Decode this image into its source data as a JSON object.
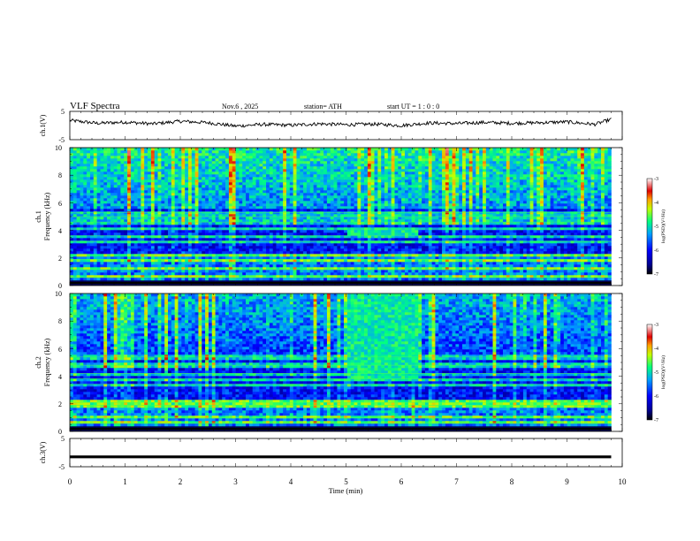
{
  "header": {
    "title": "VLF  Spectra",
    "date": "Nov.6  , 2025",
    "station": "station= ATH",
    "start_ut": "start  UT  =   1  : 0   : 0"
  },
  "chart_data": [
    {
      "type": "line",
      "name": "ch1_waveform",
      "ylabel": "ch.1(V)",
      "ylim": [
        -5,
        5
      ],
      "yticks": [
        "5",
        "-5"
      ],
      "x": [
        0,
        0.5,
        1,
        1.5,
        2,
        2.5,
        3,
        3.5,
        4,
        4.5,
        5,
        5.5,
        6,
        6.5,
        7,
        7.5,
        8,
        8.5,
        9,
        9.5,
        9.8
      ],
      "values": [
        1.8,
        0.8,
        1.2,
        0.6,
        1.5,
        1.0,
        -0.2,
        0.4,
        0.1,
        0.6,
        0.3,
        0.5,
        0.0,
        0.9,
        0.7,
        1.1,
        0.8,
        1.0,
        1.3,
        0.4,
        2.2
      ]
    },
    {
      "type": "heatmap",
      "name": "ch1_spectrogram",
      "ylabel_top": "ch.1",
      "ylabel": "Frequency  (kHz)",
      "ylim": [
        0,
        10
      ],
      "yticks": [
        "0",
        "2",
        "4",
        "6",
        "8",
        "10"
      ],
      "x_range": [
        0,
        9.8
      ],
      "colorbar": {
        "label": "log(PSD)(V²/Hz)",
        "ticks": [
          "-3",
          "-4",
          "-5",
          "-6",
          "-7"
        ],
        "range": [
          -7,
          -3
        ]
      },
      "horizontal_bands_khz": [
        0.6,
        1.2,
        1.9,
        2.2,
        3.2,
        3.6,
        4.1,
        4.6,
        5.0,
        5.3
      ],
      "event": {
        "start_min": 5.0,
        "end_min": 6.3,
        "low_khz": 3.7,
        "high_khz": 4.3
      }
    },
    {
      "type": "heatmap",
      "name": "ch2_spectrogram",
      "ylabel_top": "ch.2",
      "ylabel": "Frequency  (kHz)",
      "ylim": [
        0,
        10
      ],
      "yticks": [
        "0",
        "2",
        "4",
        "6",
        "8",
        "10"
      ],
      "x_range": [
        0,
        9.8
      ],
      "colorbar": {
        "label": "log(PSD)(V²/Hz)",
        "ticks": [
          "-3",
          "-4",
          "-5",
          "-6",
          "-7"
        ],
        "range": [
          -7,
          -3
        ]
      },
      "horizontal_bands_khz": [
        0.6,
        1.0,
        1.9,
        2.1,
        3.4,
        3.8,
        4.2,
        4.8,
        5.4
      ],
      "event": {
        "start_min": 5.0,
        "end_min": 6.3,
        "low_khz": 3.6,
        "high_khz": 10
      }
    },
    {
      "type": "line",
      "name": "ch3_waveform",
      "ylabel": "ch.3(V)",
      "ylim": [
        -5,
        5
      ],
      "yticks": [
        "5",
        "-5"
      ],
      "x": [
        0,
        9.8
      ],
      "values": [
        -1.5,
        -1.5
      ],
      "xlabel": "Time  (min)",
      "xticks": [
        "0",
        "1",
        "2",
        "3",
        "4",
        "5",
        "6",
        "7",
        "8",
        "9",
        "10"
      ],
      "xlim": [
        0,
        10
      ]
    }
  ]
}
